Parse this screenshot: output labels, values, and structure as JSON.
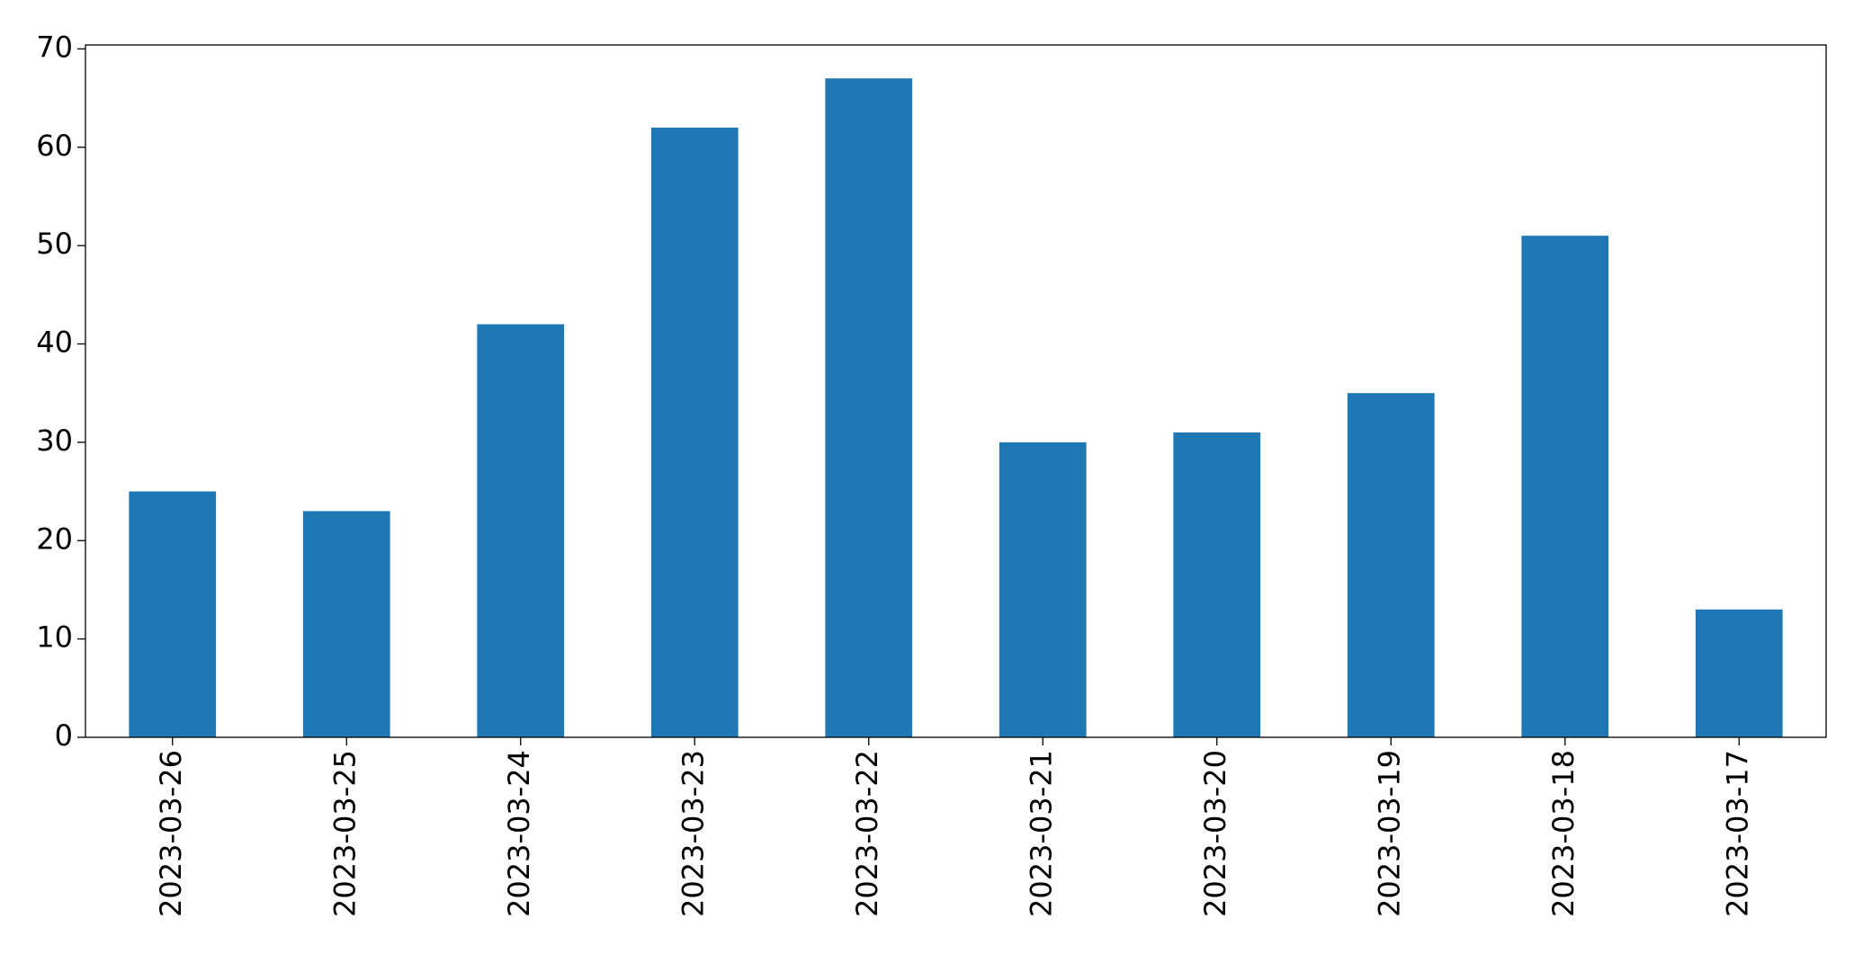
{
  "chart_data": {
    "type": "bar",
    "categories": [
      "2023-03-26",
      "2023-03-25",
      "2023-03-24",
      "2023-03-23",
      "2023-03-22",
      "2023-03-21",
      "2023-03-20",
      "2023-03-19",
      "2023-03-18",
      "2023-03-17"
    ],
    "values": [
      25,
      23,
      42,
      62,
      67,
      30,
      31,
      35,
      51,
      13
    ],
    "color": "#1f77b4",
    "ylim": [
      0,
      70.4
    ],
    "yticks": [
      0,
      10,
      20,
      30,
      40,
      50,
      60,
      70
    ],
    "grid": false
  }
}
